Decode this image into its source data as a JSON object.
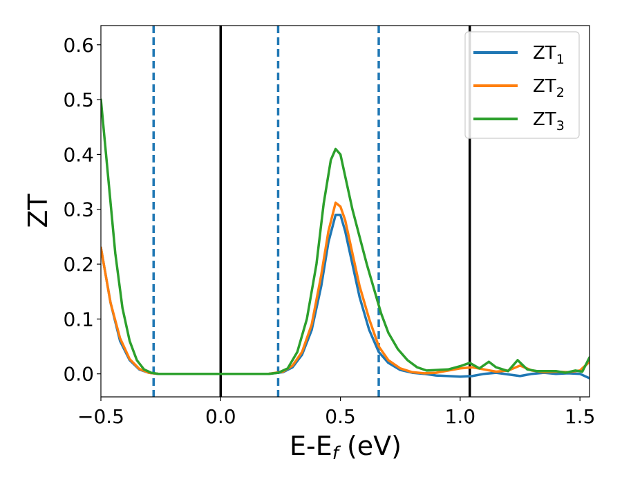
{
  "chart_data": {
    "type": "line",
    "xlabel_main": "E-E",
    "xlabel_sub": "f",
    "xlabel_unit": " (eV)",
    "ylabel": "ZT",
    "xlim": [
      -0.5,
      1.54
    ],
    "ylim": [
      -0.042,
      0.635
    ],
    "x_ticks": [
      -0.5,
      0.0,
      0.5,
      1.0,
      1.5
    ],
    "x_tick_labels": [
      "−0.5",
      "0.0",
      "0.5",
      "1.0",
      "1.5"
    ],
    "y_ticks": [
      0.0,
      0.1,
      0.2,
      0.3,
      0.4,
      0.5,
      0.6
    ],
    "y_tick_labels": [
      "0.0",
      "0.1",
      "0.2",
      "0.3",
      "0.4",
      "0.5",
      "0.6"
    ],
    "grid": false,
    "legend_position": "top-right",
    "vlines_solid": [
      0.0,
      1.04
    ],
    "vlines_dashed": [
      -0.28,
      0.24,
      0.66
    ],
    "vline_solid_color": "#000000",
    "vline_dashed_color": "#1f77b4",
    "series": [
      {
        "name": "ZT",
        "sub": "1",
        "color": "#1f77b4",
        "points": [
          [
            -0.5,
            0.23
          ],
          [
            -0.46,
            0.13
          ],
          [
            -0.42,
            0.06
          ],
          [
            -0.38,
            0.025
          ],
          [
            -0.34,
            0.008
          ],
          [
            -0.3,
            0.002
          ],
          [
            -0.26,
            0.0
          ],
          [
            0.0,
            0.0
          ],
          [
            0.2,
            0.0
          ],
          [
            0.26,
            0.003
          ],
          [
            0.3,
            0.012
          ],
          [
            0.34,
            0.035
          ],
          [
            0.38,
            0.08
          ],
          [
            0.42,
            0.16
          ],
          [
            0.45,
            0.24
          ],
          [
            0.48,
            0.29
          ],
          [
            0.5,
            0.29
          ],
          [
            0.52,
            0.26
          ],
          [
            0.55,
            0.2
          ],
          [
            0.58,
            0.14
          ],
          [
            0.62,
            0.08
          ],
          [
            0.66,
            0.04
          ],
          [
            0.7,
            0.02
          ],
          [
            0.75,
            0.007
          ],
          [
            0.8,
            0.002
          ],
          [
            0.85,
            0.0
          ],
          [
            0.9,
            -0.003
          ],
          [
            0.95,
            -0.004
          ],
          [
            1.0,
            -0.005
          ],
          [
            1.05,
            -0.004
          ],
          [
            1.1,
            0.0
          ],
          [
            1.15,
            0.002
          ],
          [
            1.2,
            -0.001
          ],
          [
            1.25,
            -0.004
          ],
          [
            1.3,
            0.0
          ],
          [
            1.35,
            0.002
          ],
          [
            1.4,
            0.0
          ],
          [
            1.45,
            0.001
          ],
          [
            1.5,
            0.0
          ],
          [
            1.54,
            -0.008
          ]
        ]
      },
      {
        "name": "ZT",
        "sub": "2",
        "color": "#ff7f0e",
        "points": [
          [
            -0.5,
            0.23
          ],
          [
            -0.46,
            0.13
          ],
          [
            -0.42,
            0.065
          ],
          [
            -0.38,
            0.027
          ],
          [
            -0.34,
            0.009
          ],
          [
            -0.3,
            0.002
          ],
          [
            -0.26,
            0.0
          ],
          [
            0.0,
            0.0
          ],
          [
            0.2,
            0.0
          ],
          [
            0.26,
            0.004
          ],
          [
            0.3,
            0.015
          ],
          [
            0.34,
            0.04
          ],
          [
            0.38,
            0.09
          ],
          [
            0.42,
            0.18
          ],
          [
            0.45,
            0.26
          ],
          [
            0.48,
            0.312
          ],
          [
            0.5,
            0.305
          ],
          [
            0.52,
            0.28
          ],
          [
            0.55,
            0.22
          ],
          [
            0.58,
            0.16
          ],
          [
            0.62,
            0.1
          ],
          [
            0.66,
            0.05
          ],
          [
            0.7,
            0.025
          ],
          [
            0.75,
            0.01
          ],
          [
            0.8,
            0.003
          ],
          [
            0.85,
            0.001
          ],
          [
            0.9,
            0.002
          ],
          [
            0.95,
            0.006
          ],
          [
            1.0,
            0.01
          ],
          [
            1.05,
            0.012
          ],
          [
            1.1,
            0.008
          ],
          [
            1.15,
            0.004
          ],
          [
            1.2,
            0.006
          ],
          [
            1.25,
            0.015
          ],
          [
            1.3,
            0.006
          ],
          [
            1.35,
            0.003
          ],
          [
            1.4,
            0.004
          ],
          [
            1.45,
            0.003
          ],
          [
            1.5,
            0.006
          ],
          [
            1.54,
            0.022
          ]
        ]
      },
      {
        "name": "ZT",
        "sub": "3",
        "color": "#2ca02c",
        "points": [
          [
            -0.5,
            0.5
          ],
          [
            -0.47,
            0.36
          ],
          [
            -0.44,
            0.22
          ],
          [
            -0.41,
            0.12
          ],
          [
            -0.38,
            0.06
          ],
          [
            -0.35,
            0.025
          ],
          [
            -0.32,
            0.008
          ],
          [
            -0.29,
            0.002
          ],
          [
            -0.26,
            0.0
          ],
          [
            0.0,
            0.0
          ],
          [
            0.2,
            0.0
          ],
          [
            0.24,
            0.002
          ],
          [
            0.28,
            0.01
          ],
          [
            0.32,
            0.04
          ],
          [
            0.36,
            0.1
          ],
          [
            0.4,
            0.2
          ],
          [
            0.43,
            0.31
          ],
          [
            0.46,
            0.39
          ],
          [
            0.48,
            0.41
          ],
          [
            0.5,
            0.4
          ],
          [
            0.52,
            0.36
          ],
          [
            0.55,
            0.3
          ],
          [
            0.58,
            0.25
          ],
          [
            0.61,
            0.2
          ],
          [
            0.64,
            0.155
          ],
          [
            0.67,
            0.11
          ],
          [
            0.7,
            0.075
          ],
          [
            0.74,
            0.045
          ],
          [
            0.78,
            0.025
          ],
          [
            0.82,
            0.012
          ],
          [
            0.86,
            0.006
          ],
          [
            0.9,
            0.007
          ],
          [
            0.95,
            0.008
          ],
          [
            1.0,
            0.014
          ],
          [
            1.04,
            0.02
          ],
          [
            1.08,
            0.01
          ],
          [
            1.12,
            0.022
          ],
          [
            1.15,
            0.012
          ],
          [
            1.2,
            0.005
          ],
          [
            1.24,
            0.025
          ],
          [
            1.28,
            0.008
          ],
          [
            1.32,
            0.005
          ],
          [
            1.4,
            0.005
          ],
          [
            1.44,
            0.002
          ],
          [
            1.48,
            0.006
          ],
          [
            1.51,
            0.004
          ],
          [
            1.54,
            0.03
          ]
        ]
      }
    ]
  }
}
